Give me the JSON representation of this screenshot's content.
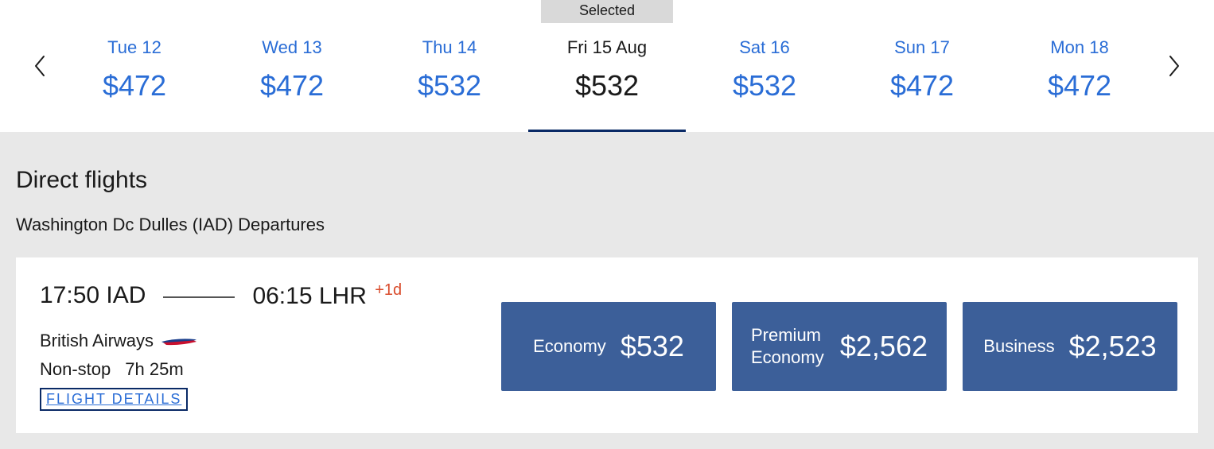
{
  "colors": {
    "page_bg": "#e8e8e8",
    "card_bg": "#ffffff",
    "link_blue": "#2a6dd6",
    "dark_navy": "#0a2a66",
    "fare_btn_bg": "#3c5f99",
    "text": "#1a1a1a",
    "plus_day": "#d94b2b",
    "selected_tag_bg": "#d9d9d9"
  },
  "date_strip": {
    "selected_label": "Selected",
    "selected_index": 3,
    "days": [
      {
        "label": "Tue 12",
        "price": "$472"
      },
      {
        "label": "Wed 13",
        "price": "$472"
      },
      {
        "label": "Thu 14",
        "price": "$532"
      },
      {
        "label": "Fri 15 Aug",
        "price": "$532"
      },
      {
        "label": "Sat 16",
        "price": "$532"
      },
      {
        "label": "Sun 17",
        "price": "$472"
      },
      {
        "label": "Mon 18",
        "price": "$472"
      }
    ]
  },
  "section": {
    "title": "Direct flights",
    "subheading": "Washington Dc Dulles (IAD) Departures"
  },
  "flight": {
    "dep_time": "17:50",
    "dep_code": "IAD",
    "arr_time": "06:15",
    "arr_code": "LHR",
    "plus_day": "+1d",
    "airline": "British Airways",
    "stops": "Non-stop",
    "duration": "7h 25m",
    "details_link": "FLIGHT DETAILS",
    "fares": [
      {
        "label": "Economy",
        "price": "$532",
        "two_line": false
      },
      {
        "label": "Premium Economy",
        "price": "$2,562",
        "two_line": true
      },
      {
        "label": "Business",
        "price": "$2,523",
        "two_line": false
      }
    ]
  }
}
